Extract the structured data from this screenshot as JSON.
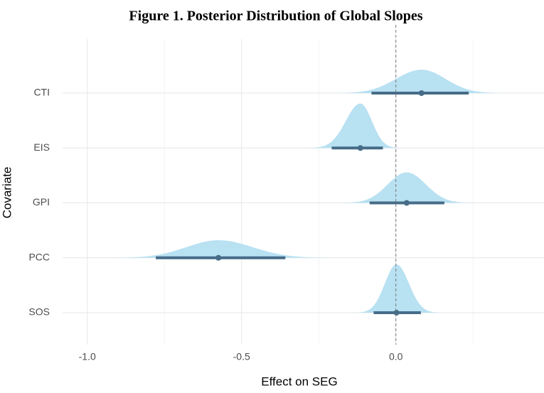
{
  "chart_data": {
    "type": "halfeye",
    "title": "Figure 1. Posterior Distribution of Global Slopes",
    "x_label": "Effect on SEG",
    "y_label": "Covariate",
    "categories": [
      "CTI",
      "EIS",
      "GPI",
      "PCC",
      "SOS"
    ],
    "point": [
      0.083,
      -0.115,
      0.035,
      -0.575,
      0.002
    ],
    "lower": [
      -0.079,
      -0.208,
      -0.085,
      -0.778,
      -0.072
    ],
    "upper": [
      0.236,
      -0.042,
      0.157,
      -0.358,
      0.081
    ],
    "xlim": [
      -1.08,
      0.48
    ],
    "xticks": [
      {
        "value": -1,
        "label": "-1.0"
      },
      {
        "value": -0.5,
        "label": "-0.5"
      },
      {
        "value": 0,
        "label": "0.0"
      }
    ],
    "minor_xticks": [
      -0.75,
      -0.25,
      0.25
    ],
    "reference_line": 0,
    "grid": true,
    "color": "#b8e1f2",
    "interval_color": "#466c88"
  }
}
